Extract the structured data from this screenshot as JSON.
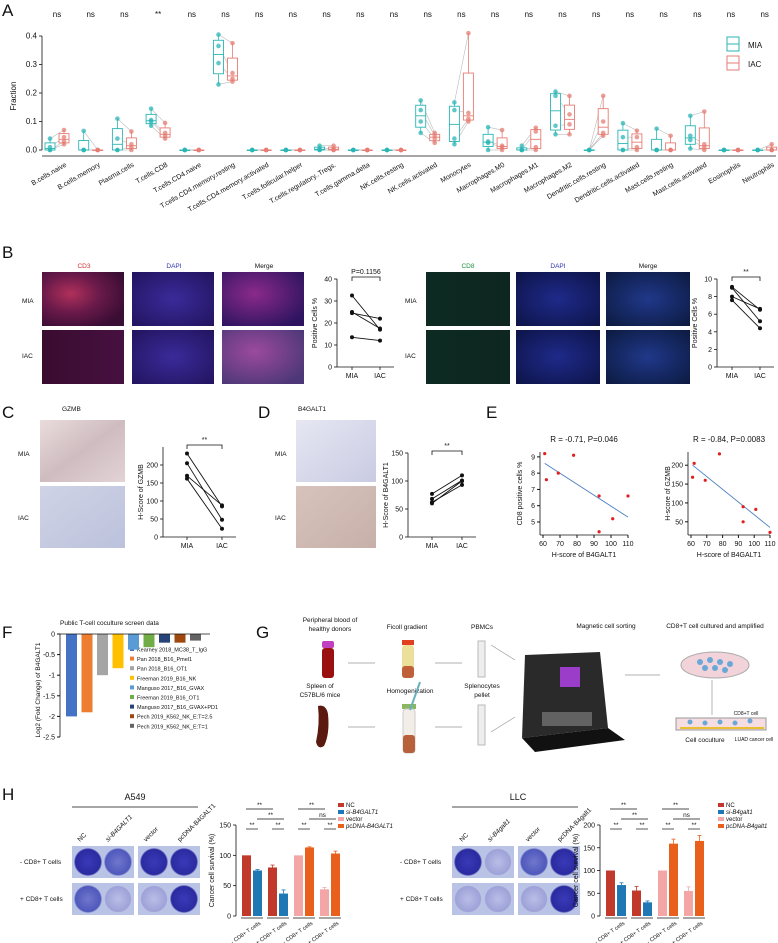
{
  "panels": {
    "A": "A",
    "B": "B",
    "C": "C",
    "D": "D",
    "E": "E",
    "F": "F",
    "G": "G",
    "H": "H"
  },
  "colors": {
    "mia": "#2bb5b5",
    "iac": "#e67c73",
    "black": "#111111",
    "regression": "#4a7ec0",
    "scatter_point": "#e02020"
  },
  "panel_b": {
    "left_headers": [
      "CD3",
      "DAPI",
      "Merge"
    ],
    "right_headers": [
      "CD8",
      "DAPI",
      "Merge"
    ],
    "rows": [
      "MIA",
      "IAC"
    ],
    "header_colors": {
      "cd3": "#d03030",
      "dapi": "#3030b0",
      "cd8": "#209040"
    }
  },
  "panel_c": {
    "header": "GZMB",
    "rows": [
      "MIA",
      "IAC"
    ]
  },
  "panel_d": {
    "header": "B4GALT1",
    "rows": [
      "MIA",
      "IAC"
    ]
  },
  "panel_g": {
    "steps": {
      "blood": "Peripheral blood of",
      "blood2": "healthy donors",
      "ficoll": "Ficoll gradient",
      "pbmc": "PBMCs",
      "spleen": "Spleen of",
      "spleen2": "C57BL/6 mice",
      "homog": "Homogenization",
      "splenocytes": "Splenocytes",
      "splenocytes2": "pellet",
      "sorting": "Magnetic cell sorting",
      "culture": "CD8+T cell cultured and amplified",
      "coculture": "Cell coculture",
      "cd8cell": "CD8+T cell",
      "luad": "LUAD cancer cell"
    }
  },
  "panel_h": {
    "a549": {
      "title": "A549",
      "cols": [
        "NC",
        "si-B4GALT1",
        "vector",
        "pcDNA-B4GALT1"
      ],
      "rows": [
        "- CD8+ T cells",
        "+ CD8+ T cells"
      ]
    },
    "llc": {
      "title": "LLC",
      "cols": [
        "NC",
        "si-B4galt1",
        "vector",
        "pcDNA-B4galt1"
      ],
      "rows": [
        "- CD8+ T cells",
        "+ CD8+ T cells"
      ]
    }
  },
  "chart_data": [
    {
      "type": "box",
      "ylabel": "Fraction",
      "ylim": [
        0,
        0.4
      ],
      "yticks": [
        "0.0",
        "0.1",
        "0.2",
        "0.3",
        "0.4"
      ],
      "legend": [
        "MIA",
        "IAC"
      ],
      "legend_position": "top-right",
      "categories": [
        "B.cells.naive",
        "B.cells.memory",
        "Plasma.cells",
        "T.cells.CD8",
        "T.cells.CD4.naive",
        "T.cells.CD4.memory.resting",
        "T.cells.CD4.memory.activated",
        "T.cells.follicular.helper",
        "T.cells.regulatory..Tregs.",
        "T.cells.gamma.delta",
        "NK.cells.resting",
        "NK.cells.activated",
        "Monocytes",
        "Macrophages.M0",
        "Macrophages.M1",
        "Macrophages.M2",
        "Dendritic.cells.resting",
        "Dendritic.cells.activated",
        "Mast.cells.resting",
        "Mast.cells.activated",
        "Eosinophils",
        "Neutrophils"
      ],
      "significance": [
        "ns",
        "ns",
        "ns",
        "**",
        "ns",
        "ns",
        "ns",
        "ns",
        "ns",
        "ns",
        "ns",
        "ns",
        "ns",
        "ns",
        "ns",
        "ns",
        "ns",
        "ns",
        "ns",
        "ns",
        "ns",
        "ns"
      ],
      "series": [
        {
          "name": "MIA",
          "values": [
            [
              0,
              0,
              0.01,
              0.04
            ],
            [
              0,
              0,
              0,
              0.067
            ],
            [
              0,
              0,
              0.04,
              0.11
            ],
            [
              0.085,
              0.1,
              0.105,
              0.145
            ],
            [
              0,
              0,
              0,
              0
            ],
            [
              0.23,
              0.305,
              0.365,
              0.405
            ],
            [
              0,
              0,
              0,
              0
            ],
            [
              0,
              0,
              0,
              0
            ],
            [
              0,
              0,
              0.005,
              0.015
            ],
            [
              0,
              0,
              0,
              0
            ],
            [
              0,
              0,
              0,
              0
            ],
            [
              0.06,
              0.1,
              0.14,
              0.174
            ],
            [
              0.02,
              0.04,
              0.14,
              0.167
            ],
            [
              0,
              0.025,
              0.03,
              0.08
            ],
            [
              0,
              0,
              0,
              0.015
            ],
            [
              0.055,
              0.085,
              0.19,
              0.205
            ],
            [
              0,
              0,
              0,
              0
            ],
            [
              0,
              0,
              0.045,
              0.094
            ],
            [
              0,
              0,
              0,
              0.075
            ],
            [
              0.005,
              0.035,
              0.05,
              0.12
            ],
            [
              0,
              0,
              0,
              0
            ],
            [
              0,
              0,
              0,
              0
            ]
          ]
        },
        {
          "name": "IAC",
          "values": [
            [
              0.02,
              0.03,
              0.045,
              0.07
            ],
            [
              0,
              0,
              0,
              0
            ],
            [
              0,
              0.01,
              0.02,
              0.065
            ],
            [
              0.04,
              0.05,
              0.06,
              0.095
            ],
            [
              0,
              0,
              0,
              0
            ],
            [
              0.24,
              0.25,
              0.27,
              0.375
            ],
            [
              0,
              0,
              0,
              0
            ],
            [
              0,
              0,
              0,
              0
            ],
            [
              0,
              0,
              0.005,
              0.015
            ],
            [
              0,
              0,
              0,
              0
            ],
            [
              0,
              0,
              0,
              0
            ],
            [
              0.025,
              0.04,
              0.05,
              0.06
            ],
            [
              0.1,
              0.11,
              0.13,
              0.41
            ],
            [
              0,
              0.01,
              0.015,
              0.07
            ],
            [
              0,
              0.01,
              0.065,
              0.078
            ],
            [
              0.055,
              0.09,
              0.125,
              0.19
            ],
            [
              0.05,
              0.06,
              0.1,
              0.19
            ],
            [
              0,
              0.01,
              0.045,
              0.068
            ],
            [
              0,
              0,
              0,
              0.05
            ],
            [
              0,
              0.01,
              0.02,
              0.135
            ],
            [
              0,
              0,
              0,
              0
            ],
            [
              0,
              0,
              0,
              0.02
            ]
          ]
        }
      ]
    },
    {
      "type": "line",
      "ylabel": "Positive Cells %",
      "categories": [
        "MIA",
        "IAC"
      ],
      "ylim": [
        0,
        40
      ],
      "yticks": [
        "0",
        "10",
        "20",
        "30",
        "40"
      ],
      "annotation": "P=0.1156",
      "pairs": [
        [
          32.5,
          17
        ],
        [
          24.5,
          22
        ],
        [
          25,
          17.5
        ],
        [
          13.5,
          12
        ]
      ]
    },
    {
      "type": "line",
      "ylabel": "Positive Cells %",
      "categories": [
        "MIA",
        "IAC"
      ],
      "ylim": [
        0,
        10
      ],
      "yticks": [
        "0",
        "2",
        "4",
        "6",
        "8",
        "10"
      ],
      "annotation": "**",
      "pairs": [
        [
          9.1,
          6.5
        ],
        [
          9.0,
          5.2
        ],
        [
          8.0,
          6.6
        ],
        [
          7.6,
          4.4
        ]
      ]
    },
    {
      "type": "line",
      "ylabel": "H-Score of GZMB",
      "categories": [
        "MIA",
        "IAC"
      ],
      "ylim": [
        0,
        250
      ],
      "yticks": [
        "0",
        "50",
        "100",
        "150",
        "200"
      ],
      "annotation": "**",
      "pairs": [
        [
          232,
          85
        ],
        [
          205,
          48
        ],
        [
          170,
          88
        ],
        [
          162,
          23
        ]
      ]
    },
    {
      "type": "line",
      "ylabel": "H-Score of B4GALT1",
      "categories": [
        "MIA",
        "IAC"
      ],
      "ylim": [
        0,
        150
      ],
      "yticks": [
        "0",
        "50",
        "100",
        "150"
      ],
      "annotation": "**",
      "pairs": [
        [
          77,
          110
        ],
        [
          68,
          101
        ],
        [
          62,
          93
        ],
        [
          60,
          100
        ]
      ]
    },
    {
      "type": "scatter",
      "title": "R = -0.71, P=0.046",
      "xlabel": "H-score of B4GALT1",
      "ylabel": "CD8 positive cells %",
      "xlim": [
        60,
        110
      ],
      "ylim": [
        4.2,
        9.3
      ],
      "xticks": [
        "60",
        "70",
        "80",
        "90",
        "100",
        "110"
      ],
      "yticks": [
        "5",
        "6",
        "7",
        "8",
        "9"
      ],
      "x": [
        61,
        62,
        69,
        78,
        93,
        101,
        110,
        93
      ],
      "y": [
        9.2,
        7.6,
        8.0,
        9.1,
        4.4,
        5.2,
        6.6,
        6.6
      ],
      "fit": [
        [
          61,
          8.6
        ],
        [
          110,
          5.3
        ]
      ]
    },
    {
      "type": "scatter",
      "title": "R = -0.84, P=0.0083",
      "xlabel": "H-score of B4GALT1",
      "ylabel": "H-score of GZMB",
      "xlim": [
        60,
        110
      ],
      "ylim": [
        15,
        235
      ],
      "xticks": [
        "60",
        "70",
        "80",
        "90",
        "100",
        "110"
      ],
      "yticks": [
        "50",
        "100",
        "150",
        "200"
      ],
      "x": [
        61,
        62,
        69,
        78,
        93,
        93,
        101,
        110
      ],
      "y": [
        168,
        205,
        160,
        230,
        90,
        50,
        83,
        22
      ],
      "fit": [
        [
          61,
          200
        ],
        [
          110,
          35
        ]
      ]
    },
    {
      "type": "bar",
      "title": "Public T-cell coculture screen data",
      "ylabel": "Log2 (Fold Change) of B4GALT1",
      "ylim": [
        -2.5,
        0
      ],
      "yticks": [
        "0",
        "-0.5",
        "-1",
        "-1.5",
        "-2",
        "-2.5"
      ],
      "legend_position": "right",
      "categories": [
        "Kearney 2018_MC38_T_IgG",
        "Pan 2018_B16_Pmel1",
        "Pan 2018_B16_OT1",
        "Freeman 2019_B16_NK",
        "Manguso 2017_B16_GVAX",
        "Freeman 2019_B16_OT1",
        "Manguso 2017_B16_GVAX+PD1",
        "Pech 2019_K562_NK_E:T=2.5",
        "Pech 2019_K562_NK_E:T=1"
      ],
      "values": [
        -2.0,
        -1.9,
        -1.0,
        -0.83,
        -0.38,
        -0.32,
        -0.21,
        -0.21,
        -0.16
      ],
      "colors": [
        "#4472c4",
        "#ed7d31",
        "#a5a5a5",
        "#ffc000",
        "#5b9bd5",
        "#70ad47",
        "#264478",
        "#9e480e",
        "#636363"
      ]
    },
    {
      "type": "bar",
      "ylabel": "Cancer cell survival (%)",
      "ylim": [
        0,
        150
      ],
      "yticks": [
        "0",
        "50",
        "100",
        "150"
      ],
      "xticklabels": [
        "- CD8+ T cells",
        "+ CD8+ T cells",
        "- CD8+ T cells",
        "+ CD8+ T cells"
      ],
      "legend": [
        "NC",
        "si-B4GALT1",
        "vector",
        "pcDNA-B4GALT1"
      ],
      "legend_position": "right",
      "colors": [
        "#c0392b",
        "#1f77b4",
        "#f4a6a6",
        "#e8601c"
      ],
      "values": [
        100,
        75,
        80,
        37,
        100,
        113,
        44,
        103
      ],
      "errors": [
        0,
        1.5,
        4,
        6,
        0,
        1,
        3,
        4
      ],
      "groups": [
        0,
        1,
        0,
        1,
        2,
        3,
        2,
        3
      ],
      "significance": [
        {
          "a": 0,
          "b": 1,
          "t": "**"
        },
        {
          "a": 2,
          "b": 3,
          "t": "**"
        },
        {
          "a": 0,
          "b": 2,
          "t": "**"
        },
        {
          "a": 1,
          "b": 3,
          "t": "**"
        },
        {
          "a": 4,
          "b": 5,
          "t": "**"
        },
        {
          "a": 6,
          "b": 7,
          "t": "**"
        },
        {
          "a": 4,
          "b": 6,
          "t": "**"
        },
        {
          "a": 5,
          "b": 7,
          "t": "ns"
        }
      ]
    },
    {
      "type": "bar",
      "ylabel": "Cancer cell survival (%)",
      "ylim": [
        0,
        200
      ],
      "yticks": [
        "0",
        "50",
        "100",
        "150",
        "200"
      ],
      "xticklabels": [
        "- CD8+ T cells",
        "+ CD8+ T cells",
        "- CD8+ T cells",
        "+ CD8+ T cells"
      ],
      "legend": [
        "NC",
        "si-B4galt1",
        "vector",
        "pcDNA-B4galt1"
      ],
      "legend_position": "right",
      "colors": [
        "#c0392b",
        "#1f77b4",
        "#f4a6a6",
        "#e8601c"
      ],
      "values": [
        100,
        68,
        56,
        30,
        100,
        159,
        55,
        165
      ],
      "errors": [
        0,
        5,
        9,
        3,
        0,
        10,
        9,
        12
      ],
      "groups": [
        0,
        1,
        0,
        1,
        2,
        3,
        2,
        3
      ],
      "significance": [
        {
          "a": 0,
          "b": 1,
          "t": "**"
        },
        {
          "a": 2,
          "b": 3,
          "t": "**"
        },
        {
          "a": 0,
          "b": 2,
          "t": "**"
        },
        {
          "a": 1,
          "b": 3,
          "t": "**"
        },
        {
          "a": 4,
          "b": 5,
          "t": "**"
        },
        {
          "a": 6,
          "b": 7,
          "t": "**"
        },
        {
          "a": 4,
          "b": 6,
          "t": "**"
        },
        {
          "a": 5,
          "b": 7,
          "t": "ns"
        }
      ]
    }
  ]
}
